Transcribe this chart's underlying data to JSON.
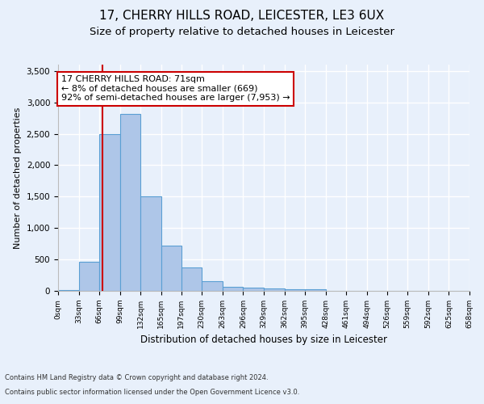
{
  "title_line1": "17, CHERRY HILLS ROAD, LEICESTER, LE3 6UX",
  "title_line2": "Size of property relative to detached houses in Leicester",
  "xlabel": "Distribution of detached houses by size in Leicester",
  "ylabel": "Number of detached properties",
  "footer_line1": "Contains HM Land Registry data © Crown copyright and database right 2024.",
  "footer_line2": "Contains public sector information licensed under the Open Government Licence v3.0.",
  "bin_edges": [
    0,
    33,
    66,
    99,
    132,
    165,
    197,
    230,
    263,
    296,
    329,
    362,
    395,
    428,
    461,
    494,
    526,
    559,
    592,
    625,
    658
  ],
  "bar_values": [
    15,
    460,
    2500,
    2820,
    1500,
    720,
    375,
    150,
    70,
    50,
    45,
    25,
    20,
    0,
    0,
    0,
    0,
    0,
    0,
    0
  ],
  "bar_color": "#aec6e8",
  "bar_edge_color": "#5a9fd4",
  "property_size": 71,
  "vline_color": "#cc0000",
  "annotation_text": "17 CHERRY HILLS ROAD: 71sqm\n← 8% of detached houses are smaller (669)\n92% of semi-detached houses are larger (7,953) →",
  "annotation_box_facecolor": "#ffffff",
  "annotation_box_edgecolor": "#cc0000",
  "ylim": [
    0,
    3600
  ],
  "yticks": [
    0,
    500,
    1000,
    1500,
    2000,
    2500,
    3000,
    3500
  ],
  "background_color": "#e8f0fb",
  "plot_background_color": "#e8f0fb",
  "grid_color": "#ffffff",
  "title_fontsize": 11,
  "subtitle_fontsize": 9.5,
  "annotation_fontsize": 8,
  "ylabel_fontsize": 8,
  "xlabel_fontsize": 8.5,
  "footer_fontsize": 6,
  "xtick_fontsize": 6.5,
  "ytick_fontsize": 7.5
}
